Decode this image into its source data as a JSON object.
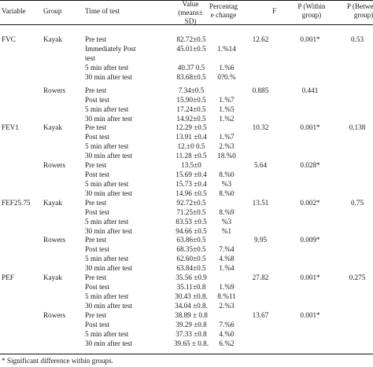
{
  "header": {
    "variable": "Variable",
    "group": "Group",
    "time": "Time of test",
    "value_line1": "Value",
    "value_line2": "(means±",
    "value_line3": "SD)",
    "pct_line1": "Percentag",
    "pct_line2": "e change",
    "f": "F",
    "p_within_line1": "P (Within",
    "p_within_line2": "group)",
    "p_between_line1": "P (Between",
    "p_between_line2": "group)"
  },
  "rows": [
    {
      "variable": "FVC",
      "group": "Kayak",
      "time": "Pre test",
      "value": "82.72±0.5",
      "pct": "",
      "f": "12.62",
      "pw": "0.001*",
      "pb": "0.53"
    },
    {
      "variable": "",
      "group": "",
      "time": "Immediately Post",
      "value": "45.01±0.5",
      "pct": "1.%14",
      "f": "",
      "pw": "",
      "pb": ""
    },
    {
      "variable": "",
      "group": "",
      "time": "test",
      "value": "",
      "pct": "",
      "f": "",
      "pw": "",
      "pb": ""
    },
    {
      "variable": "",
      "group": "",
      "time": "5 min after test",
      "value": "40.37 0.5",
      "pct": "1.%6",
      "f": "",
      "pw": "",
      "pb": ""
    },
    {
      "variable": "",
      "group": "",
      "time": "30 min after test",
      "value": "83.68±0.5",
      "pct": "0?0.%",
      "f": "",
      "pw": "",
      "pb": ""
    },
    {
      "variable": "",
      "group": "Rowers",
      "time": "Pre test",
      "value": "7.34±0.5",
      "pct": "",
      "f": "0.885",
      "pw": "0.441",
      "pb": ""
    },
    {
      "variable": "",
      "group": "",
      "time": "Post test",
      "value": "15.90±0.5",
      "pct": "1.%7",
      "f": "",
      "pw": "",
      "pb": ""
    },
    {
      "variable": "",
      "group": "",
      "time": "5 min after test",
      "value": "17.24±0.5",
      "pct": "1.%5",
      "f": "",
      "pw": "",
      "pb": ""
    },
    {
      "variable": "",
      "group": "",
      "time": "30 min after test",
      "value": "14.92±0.5",
      "pct": "1.%2",
      "f": "",
      "pw": "",
      "pb": ""
    },
    {
      "variable": "FEV1",
      "group": "Kayak",
      "time": "Pre test",
      "value": "12.29 ±0.5",
      "pct": "",
      "f": "10.32",
      "pw": "0.001*",
      "pb": "0.138"
    },
    {
      "variable": "",
      "group": "",
      "time": "Post test",
      "value": "13.91 ±0.4",
      "pct": "1.%7",
      "f": "",
      "pw": "",
      "pb": ""
    },
    {
      "variable": "",
      "group": "",
      "time": "5 min after test",
      "value": "12.±0 0.5",
      "pct": "2.%3",
      "f": "",
      "pw": "",
      "pb": ""
    },
    {
      "variable": "",
      "group": "",
      "time": "30 min after test",
      "value": "11.28 ±0.5",
      "pct": "18.%0",
      "f": "",
      "pw": "",
      "pb": ""
    },
    {
      "variable": "",
      "group": "Rowers",
      "time": "Pre test",
      "value": "13.5±0",
      "pct": "",
      "f": "5.64",
      "pw": "0.028*",
      "pb": ""
    },
    {
      "variable": "",
      "group": "",
      "time": "Post test",
      "value": "15.69 ±0.4",
      "pct": "8.%0",
      "f": "",
      "pw": "",
      "pb": ""
    },
    {
      "variable": "",
      "group": "",
      "time": "5 min after test",
      "value": "15.73 ±0.4",
      "pct": "%3",
      "f": "",
      "pw": "",
      "pb": ""
    },
    {
      "variable": "",
      "group": "",
      "time": "30 min after test",
      "value": "14.96 ±0.5",
      "pct": "8.%0",
      "f": "",
      "pw": "",
      "pb": ""
    },
    {
      "variable": "FEF25.75",
      "group": "Kayak",
      "time": "Pre test",
      "value": "92.72±0.5",
      "pct": "",
      "f": "13.51",
      "pw": "0.002*",
      "pb": "0.75"
    },
    {
      "variable": "",
      "group": "",
      "time": "Post test",
      "value": "71.25±0.5",
      "pct": "8.%9",
      "f": "",
      "pw": "",
      "pb": ""
    },
    {
      "variable": "",
      "group": "",
      "time": "5 min after test",
      "value": "83.53 ±0.5",
      "pct": "%3",
      "f": "",
      "pw": "",
      "pb": ""
    },
    {
      "variable": "",
      "group": "",
      "time": "30 min after test",
      "value": "94.66 ±0.5",
      "pct": "%1",
      "f": "",
      "pw": "",
      "pb": ""
    },
    {
      "variable": "",
      "group": "Rowers",
      "time": "Pre test",
      "value": "63.86±0.5",
      "pct": "",
      "f": "9.95",
      "pw": "0.009*",
      "pb": ""
    },
    {
      "variable": "",
      "group": "",
      "time": "Post test",
      "value": "68.35±0.5",
      "pct": "7.%4",
      "f": "",
      "pw": "",
      "pb": ""
    },
    {
      "variable": "",
      "group": "",
      "time": "5 min after test",
      "value": "62.60±0.5",
      "pct": "4.%8",
      "f": "",
      "pw": "",
      "pb": ""
    },
    {
      "variable": "",
      "group": "",
      "time": "30 min after test",
      "value": "63.84±0.5",
      "pct": "1.%4",
      "f": "",
      "pw": "",
      "pb": ""
    },
    {
      "variable": "PEF",
      "group": "Kayak",
      "time": "Pre test",
      "value": "35.56 ±0.9",
      "pct": "",
      "f": "27.82",
      "pw": "0.001*",
      "pb": "0.275"
    },
    {
      "variable": "",
      "group": "",
      "time": "Post test",
      "value": "35.11±0.8",
      "pct": "1.%9",
      "f": "",
      "pw": "",
      "pb": ""
    },
    {
      "variable": "",
      "group": "",
      "time": "5 min after test",
      "value": "30.43 ±0.8.",
      "pct": "8.%11",
      "f": "",
      "pw": "",
      "pb": ""
    },
    {
      "variable": "",
      "group": "",
      "time": "30 min after test",
      "value": "34.04 ±0.8.",
      "pct": "2.%3",
      "f": "",
      "pw": "",
      "pb": ""
    },
    {
      "variable": "",
      "group": "Rowers",
      "time": "Pre test",
      "value": "38.89 ± 0.8",
      "pct": "",
      "f": "13.67",
      "pw": "0.001*",
      "pb": ""
    },
    {
      "variable": "",
      "group": "",
      "time": "Post test",
      "value": "39.29 ±0.8",
      "pct": "7.%6",
      "f": "",
      "pw": "",
      "pb": ""
    },
    {
      "variable": "",
      "group": "",
      "time": "5 min after test",
      "value": "37.33 ±0.8",
      "pct": "4.%0",
      "f": "",
      "pw": "",
      "pb": ""
    },
    {
      "variable": "",
      "group": "",
      "time": "30 min after test",
      "value": "39.65 ± 0.8.",
      "pct": "6.%2",
      "f": "",
      "pw": "",
      "pb": ""
    }
  ],
  "footnote": "* Significant difference within groups."
}
